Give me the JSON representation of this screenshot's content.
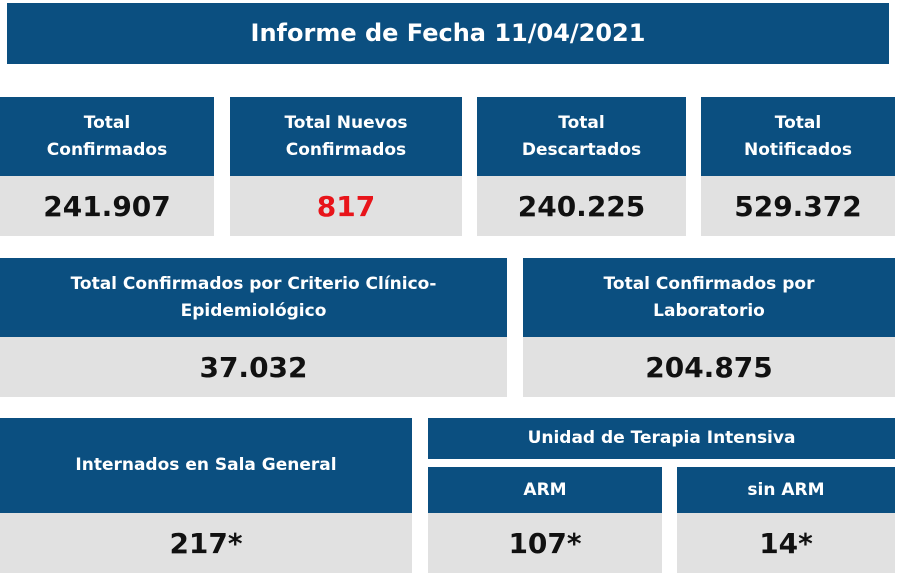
{
  "title": "Informe de Fecha 11/04/2021",
  "colors": {
    "header_bg": "#0b4f80",
    "value_bg": "#e1e1e1",
    "highlight": "#e8141a"
  },
  "row1": [
    {
      "label_line1": "Total",
      "label_line2": "Confirmados",
      "value": "241.907"
    },
    {
      "label_line1": "Total Nuevos",
      "label_line2": "Confirmados",
      "value": "817"
    },
    {
      "label_line1": "Total",
      "label_line2": "Descartados",
      "value": "240.225"
    },
    {
      "label_line1": "Total",
      "label_line2": "Notificados",
      "value": "529.372"
    }
  ],
  "row2": [
    {
      "label_line1": "Total Confirmados por Criterio Clínico-",
      "label_line2": "Epidemiológico",
      "value": "37.032"
    },
    {
      "label_line1": "Total Confirmados por",
      "label_line2": "Laboratorio",
      "value": "204.875"
    }
  ],
  "row3": {
    "sala_general": {
      "label": "Internados en Sala General",
      "value": "217*"
    },
    "uti": {
      "label": "Unidad de Terapia Intensiva",
      "arm": {
        "label": "ARM",
        "value": "107*"
      },
      "sin_arm": {
        "label": "sin ARM",
        "value": "14*"
      }
    }
  }
}
